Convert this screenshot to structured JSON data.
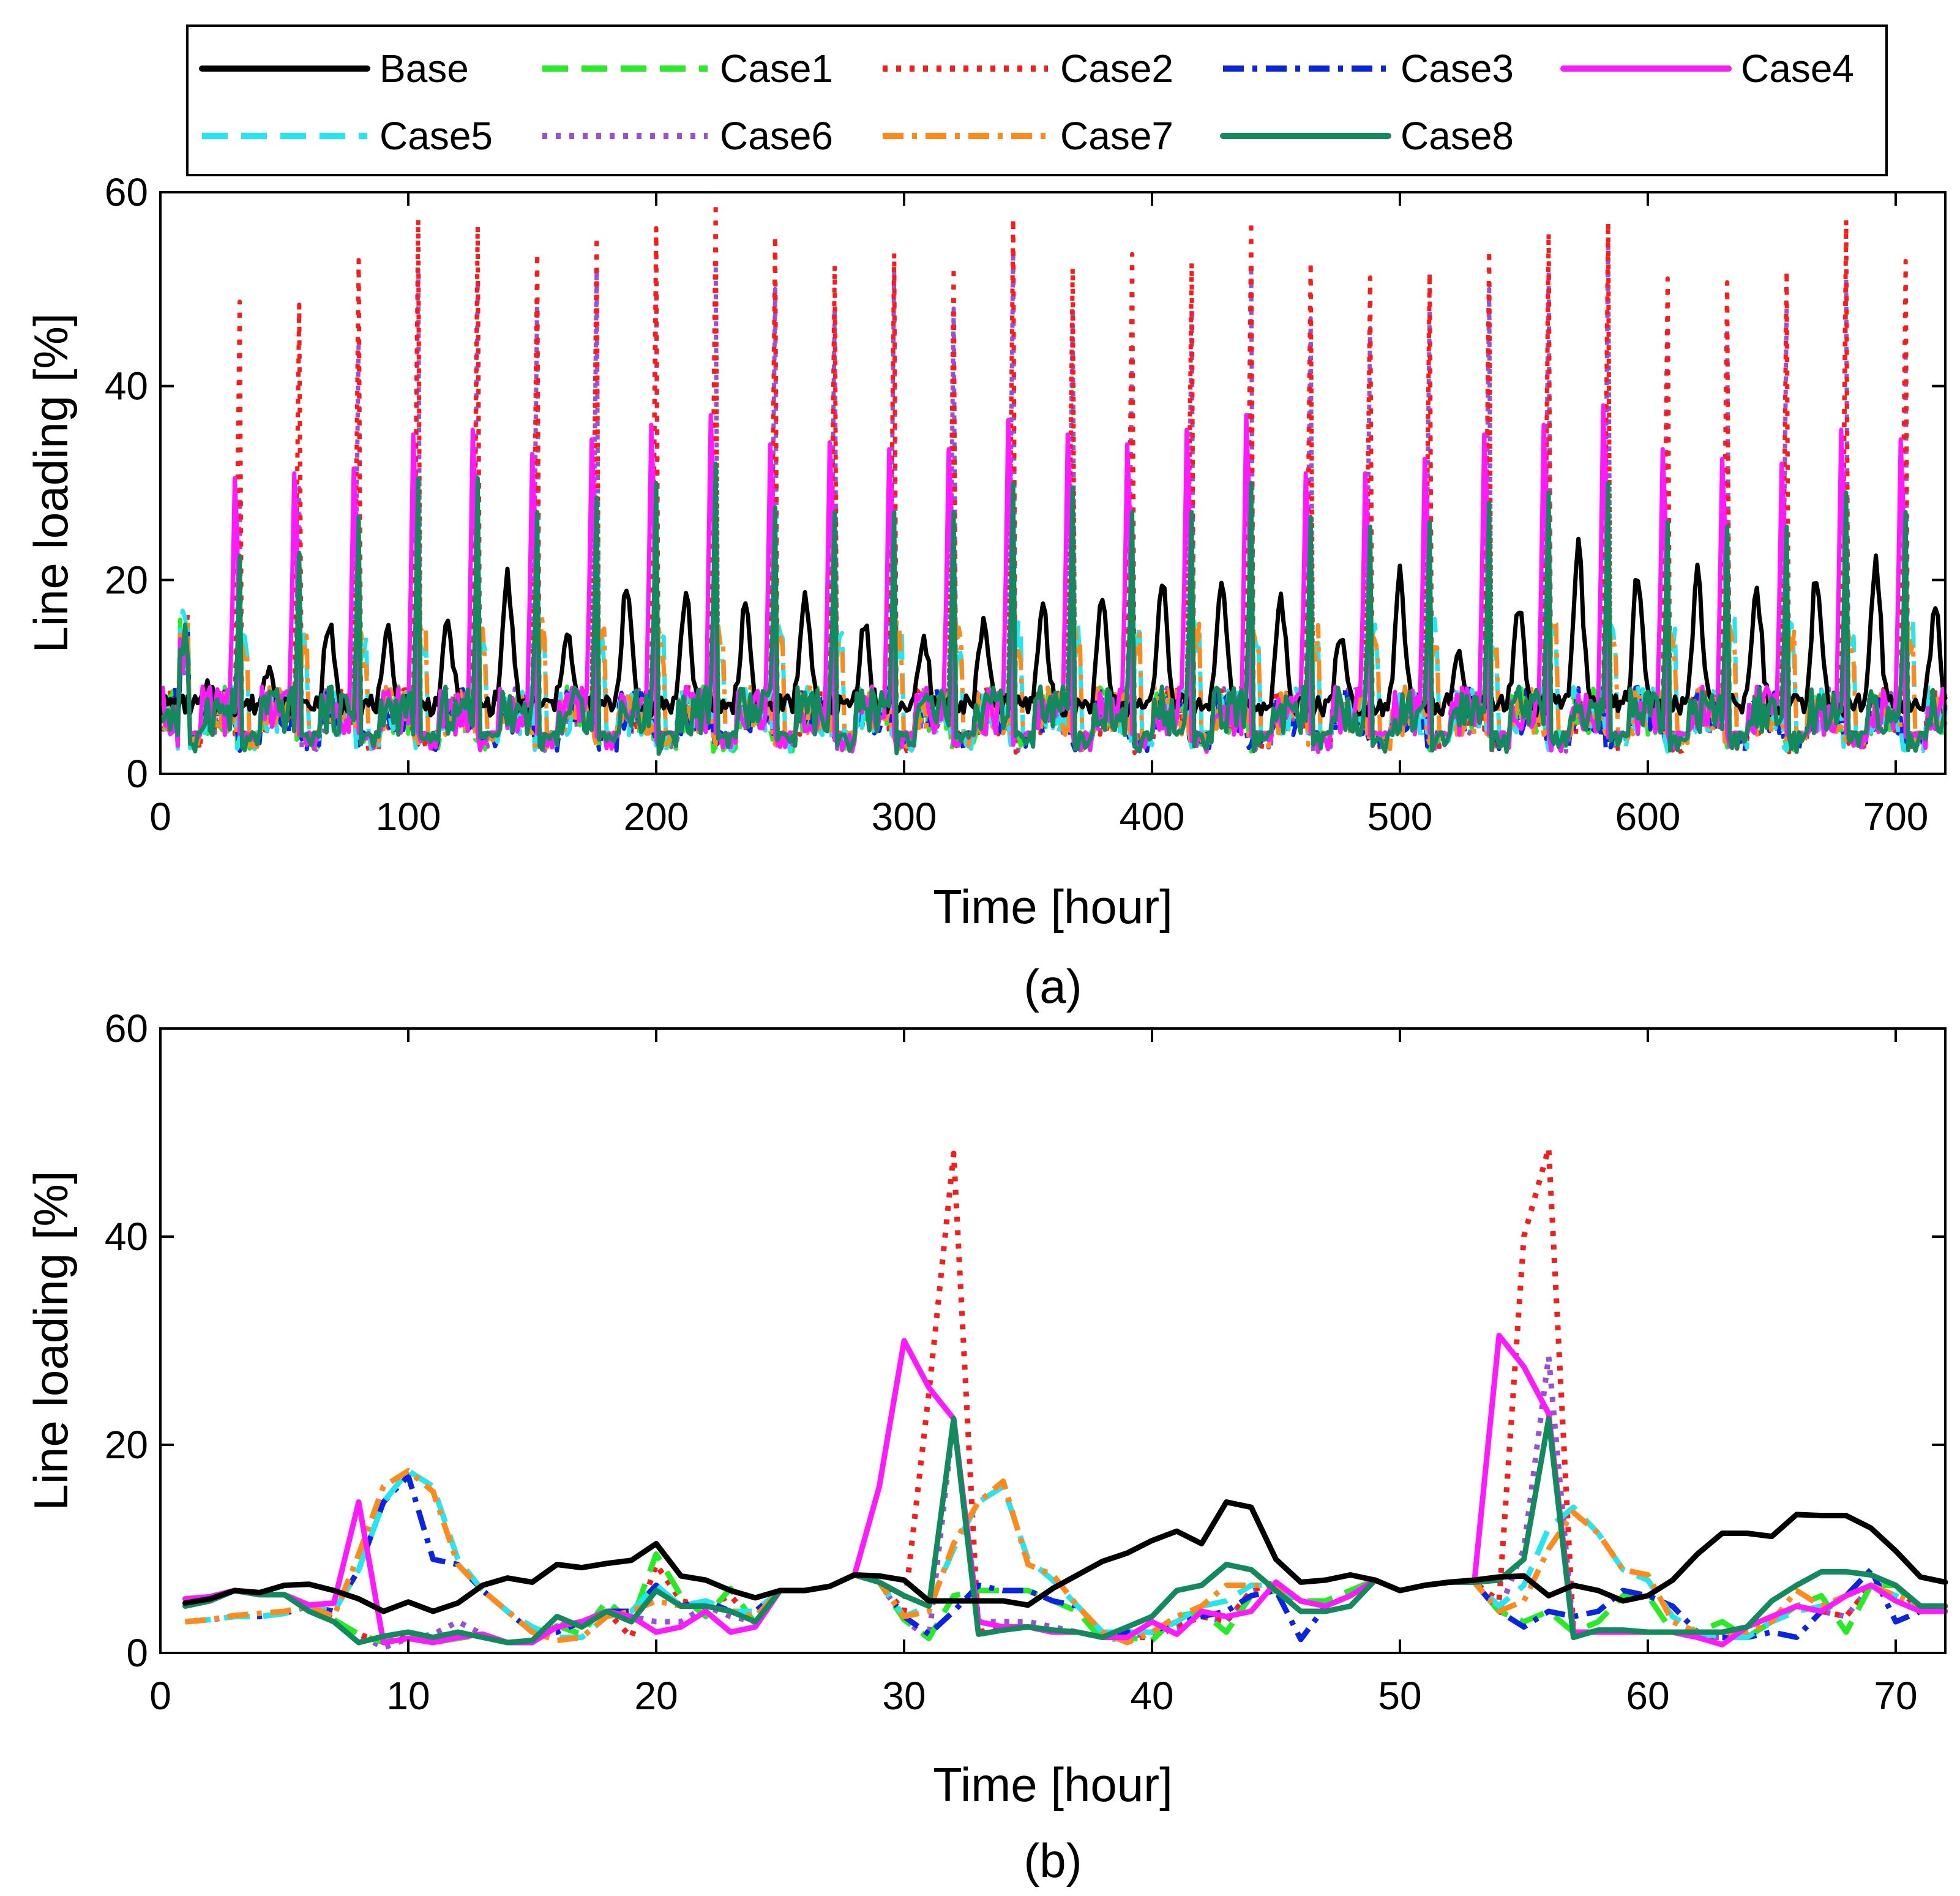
{
  "legend": {
    "entries": [
      {
        "name": "Base",
        "color": "#000000",
        "dash": "solid"
      },
      {
        "name": "Case1",
        "color": "#22ee22",
        "dash": "dashed"
      },
      {
        "name": "Case2",
        "color": "#ff1a1a",
        "dash": "dotted"
      },
      {
        "name": "Case3",
        "color": "#0a24e6",
        "dash": "dashdot"
      },
      {
        "name": "Case4",
        "color": "#ff19ff",
        "dash": "solid"
      },
      {
        "name": "Case5",
        "color": "#22e6f0",
        "dash": "dashed"
      },
      {
        "name": "Case6",
        "color": "#9a4fd6",
        "dash": "dotted"
      },
      {
        "name": "Case7",
        "color": "#ff8a1a",
        "dash": "dashdot"
      },
      {
        "name": "Case8",
        "color": "#138a5e",
        "dash": "solid"
      }
    ]
  },
  "chart_data": [
    {
      "type": "line",
      "panel_label": "(a)",
      "title": "",
      "xlabel": "Time [hour]",
      "ylabel": "Line loading [%]",
      "xlim": [
        0,
        720
      ],
      "ylim": [
        0,
        60
      ],
      "xticks": [
        0,
        100,
        200,
        300,
        400,
        500,
        600,
        700
      ],
      "yticks": [
        0,
        20,
        40,
        60
      ],
      "generated": {
        "hours": 720,
        "day_peaks": {
          "Base": [
            7.7,
            10.4,
            14.4,
            13.3,
            14.4,
            19.3,
            13.9,
            18.7,
            17.6,
            16.6,
            17.8,
            14.8,
            12.5,
            14.5,
            16.6,
            16.7,
            19.4,
            19.4,
            16.8,
            13.5,
            19.7,
            10.8,
            15.8,
            22.4,
            19.8,
            19.4,
            17.5,
            19.5,
            21.0,
            16.5
          ],
          "Case2": [
            18.0,
            48.7,
            48.4,
            53.0,
            57.2,
            56.5,
            53.7,
            55.4,
            56.3,
            58.9,
            55.5,
            52.4,
            53.7,
            52.3,
            57.3,
            52.2,
            53.6,
            52.7,
            57.0,
            52.8,
            51.2,
            51.7,
            54.0,
            55.8,
            56.9,
            51.1,
            50.7,
            51.9,
            57.1,
            52.9
          ],
          "Case4": [
            14.5,
            30.5,
            31.0,
            31.5,
            35.0,
            35.5,
            33.0,
            34.5,
            36.0,
            37.0,
            34.0,
            34.2,
            33.5,
            33.5,
            36.5,
            35.0,
            34.0,
            35.5,
            37.0,
            31.0,
            31.0,
            32.5,
            35.0,
            36.0,
            38.0,
            33.5,
            32.5,
            32.0,
            35.5,
            34.5
          ],
          "Case6": [
            17.5,
            28.5,
            29.5,
            45.0,
            52.0,
            51.0,
            49.0,
            52.0,
            50.0,
            53.0,
            50.0,
            48.0,
            52.0,
            48.0,
            54.0,
            48.0,
            44.0,
            48.0,
            52.0,
            47.0,
            46.0,
            48.0,
            50.0,
            52.0,
            55.0,
            47.0,
            46.0,
            48.0,
            51.0,
            43.0
          ],
          "Case8": [
            17.0,
            22.5,
            22.8,
            26.5,
            30.5,
            30.5,
            27.0,
            28.5,
            30.0,
            32.0,
            27.5,
            27.0,
            27.0,
            27.0,
            30.0,
            29.5,
            27.0,
            27.0,
            30.0,
            26.5,
            25.5,
            26.0,
            28.0,
            29.0,
            30.0,
            26.0,
            25.5,
            25.5,
            29.0,
            27.0
          ]
        }
      }
    },
    {
      "type": "line",
      "panel_label": "(b)",
      "title": "",
      "xlabel": "Time [hour]",
      "ylabel": "Line loading [%]",
      "xlim": [
        0,
        72
      ],
      "ylim": [
        0,
        60
      ],
      "xticks": [
        0,
        10,
        20,
        30,
        40,
        50,
        60,
        70
      ],
      "yticks": [
        0,
        20,
        40,
        60
      ],
      "x": [
        1,
        2,
        3,
        4,
        5,
        6,
        7,
        8,
        9,
        10,
        11,
        12,
        13,
        14,
        15,
        16,
        17,
        18,
        19,
        20,
        21,
        22,
        23,
        24,
        25,
        26,
        27,
        28,
        29,
        30,
        31,
        32,
        33,
        34,
        35,
        36,
        37,
        38,
        39,
        40,
        41,
        42,
        43,
        44,
        45,
        46,
        47,
        48,
        49,
        50,
        51,
        52,
        53,
        54,
        55,
        56,
        57,
        58,
        59,
        60,
        61,
        62,
        63,
        64,
        65,
        66,
        67,
        68,
        69,
        70,
        71,
        72
      ],
      "series": [
        {
          "name": "Base",
          "values": [
            4.8,
            5.2,
            6.0,
            5.8,
            6.5,
            6.6,
            6.0,
            5.2,
            4.0,
            4.9,
            4.0,
            4.8,
            6.5,
            7.2,
            6.8,
            8.5,
            8.2,
            8.6,
            8.9,
            10.5,
            7.4,
            7.0,
            6.0,
            5.3,
            6.0,
            6.0,
            6.4,
            7.5,
            7.4,
            7.0,
            5.0,
            5.0,
            5.0,
            5.0,
            4.6,
            6.2,
            7.5,
            8.8,
            9.6,
            10.8,
            11.7,
            10.5,
            14.5,
            14.0,
            9.0,
            6.8,
            7.0,
            7.5,
            7.0,
            6.0,
            6.5,
            6.8,
            7.0,
            7.3,
            7.4,
            5.5,
            6.5,
            6.0,
            5.0,
            5.5,
            7.0,
            9.5,
            11.5,
            11.5,
            11.2,
            13.3,
            13.2,
            13.2,
            12.0,
            9.8,
            7.3,
            6.8
          ]
        },
        {
          "name": "Case1",
          "values": [
            5.0,
            5.4,
            6.0,
            5.6,
            5.6,
            4.6,
            3.2,
            1.8,
            1.0,
            2.0,
            1.0,
            1.4,
            1.8,
            1.0,
            1.2,
            2.6,
            1.8,
            5.0,
            3.0,
            9.5,
            5.5,
            3.5,
            6.2,
            2.8,
            6.0,
            6.0,
            6.4,
            7.5,
            6.8,
            3.2,
            1.4,
            5.5,
            6.0,
            6.0,
            6.0,
            5.0,
            4.0,
            1.2,
            1.5,
            1.2,
            3.5,
            4.0,
            2.0,
            5.5,
            6.0,
            5.0,
            5.0,
            6.0,
            7.0,
            6.0,
            6.5,
            6.8,
            6.8,
            4.0,
            3.0,
            4.0,
            2.0,
            3.0,
            5.5,
            5.5,
            2.0,
            2.0,
            3.0,
            1.5,
            3.0,
            4.5,
            5.5,
            2.0,
            6.5,
            6.5,
            4.0,
            4.0
          ]
        },
        {
          "name": "Case2",
          "values": [
            5.0,
            5.4,
            6.0,
            5.6,
            5.6,
            4.6,
            3.2,
            1.8,
            1.0,
            2.0,
            1.0,
            1.4,
            1.8,
            1.0,
            1.2,
            2.6,
            3.0,
            4.0,
            1.5,
            8.5,
            5.0,
            4.5,
            5.5,
            2.8,
            6.0,
            6.0,
            6.4,
            7.5,
            6.8,
            4.0,
            25.0,
            48.0,
            2.0,
            2.5,
            2.5,
            2.0,
            2.0,
            1.5,
            1.5,
            1.5,
            2.5,
            3.5,
            3.0,
            6.0,
            6.8,
            5.0,
            4.5,
            5.5,
            7.0,
            6.0,
            6.5,
            6.8,
            6.8,
            5.0,
            40.0,
            48.5,
            2.0,
            2.0,
            2.0,
            2.0,
            2.0,
            1.5,
            1.5,
            1.5,
            3.0,
            4.5,
            4.0,
            3.5,
            6.5,
            6.5,
            4.0,
            4.0
          ]
        },
        {
          "name": "Case3",
          "values": [
            3.0,
            3.2,
            3.5,
            3.5,
            3.8,
            4.5,
            4.0,
            8.0,
            14.5,
            17.0,
            9.0,
            8.5,
            6.0,
            4.0,
            2.0,
            2.0,
            3.0,
            4.0,
            4.0,
            6.5,
            4.5,
            5.0,
            4.0,
            4.0,
            6.0,
            6.0,
            6.4,
            7.5,
            6.8,
            3.5,
            1.8,
            4.0,
            6.5,
            6.0,
            6.0,
            5.0,
            4.5,
            2.0,
            2.0,
            2.0,
            3.0,
            3.5,
            4.0,
            5.5,
            6.0,
            1.3,
            4.5,
            5.5,
            7.0,
            6.0,
            6.5,
            6.8,
            6.8,
            4.0,
            2.5,
            4.0,
            3.5,
            4.0,
            6.0,
            5.5,
            4.5,
            2.0,
            1.5,
            1.5,
            2.0,
            1.5,
            4.0,
            5.5,
            8.0,
            3.0,
            4.0,
            4.0
          ]
        },
        {
          "name": "Case4",
          "values": [
            5.2,
            5.4,
            6.0,
            5.6,
            5.6,
            4.6,
            4.8,
            14.5,
            1.0,
            1.4,
            1.0,
            1.5,
            1.8,
            1.0,
            1.0,
            2.5,
            3.0,
            4.0,
            3.5,
            2.0,
            2.5,
            4.0,
            2.0,
            2.5,
            6.0,
            6.0,
            6.4,
            7.5,
            16.0,
            30.0,
            25.5,
            22.5,
            3.0,
            2.5,
            2.5,
            2.0,
            2.0,
            1.5,
            1.5,
            3.0,
            1.8,
            4.0,
            3.5,
            4.0,
            6.8,
            5.0,
            4.5,
            5.5,
            7.0,
            6.0,
            6.5,
            6.8,
            6.8,
            30.5,
            27.5,
            23.0,
            2.0,
            2.0,
            2.0,
            2.0,
            2.0,
            1.5,
            0.8,
            2.5,
            3.5,
            4.5,
            4.0,
            5.5,
            6.5,
            5.0,
            4.0,
            4.0
          ]
        },
        {
          "name": "Case5",
          "values": [
            3.0,
            3.2,
            3.5,
            3.5,
            3.8,
            4.5,
            4.0,
            8.0,
            14.5,
            17.5,
            16.0,
            9.0,
            6.0,
            4.0,
            2.5,
            1.5,
            1.5,
            3.5,
            4.0,
            6.5,
            4.5,
            5.0,
            4.0,
            4.0,
            6.0,
            6.0,
            6.4,
            7.5,
            6.8,
            3.5,
            4.5,
            10.0,
            14.5,
            16.0,
            9.0,
            7.0,
            4.5,
            2.0,
            2.0,
            2.0,
            3.0,
            4.5,
            5.0,
            6.5,
            6.5,
            5.0,
            4.5,
            5.5,
            7.0,
            6.0,
            6.5,
            6.8,
            6.8,
            4.5,
            6.5,
            12.0,
            14.0,
            11.5,
            8.0,
            7.0,
            3.5,
            2.0,
            1.5,
            1.5,
            3.0,
            4.0,
            4.5,
            5.5,
            6.5,
            5.5,
            4.0,
            4.0
          ]
        },
        {
          "name": "Case6",
          "values": [
            5.0,
            5.4,
            6.0,
            5.6,
            5.6,
            4.6,
            3.2,
            1.8,
            0.5,
            1.4,
            1.8,
            3.0,
            1.8,
            1.0,
            1.2,
            2.6,
            3.0,
            4.0,
            3.5,
            3.0,
            3.0,
            4.5,
            3.5,
            3.0,
            6.0,
            6.0,
            6.4,
            7.5,
            6.8,
            3.2,
            1.4,
            22.5,
            3.0,
            3.0,
            3.0,
            2.5,
            2.0,
            1.5,
            1.5,
            2.0,
            2.5,
            3.5,
            3.0,
            6.0,
            6.8,
            5.0,
            4.5,
            5.5,
            7.0,
            6.0,
            6.5,
            6.8,
            6.8,
            4.0,
            10.0,
            28.5,
            2.0,
            2.0,
            2.0,
            2.0,
            2.0,
            1.5,
            1.5,
            1.5,
            3.0,
            4.5,
            4.0,
            3.5,
            6.5,
            6.5,
            4.0,
            4.0
          ]
        },
        {
          "name": "Case7",
          "values": [
            3.0,
            3.2,
            3.6,
            3.8,
            4.0,
            4.5,
            3.5,
            9.5,
            16.0,
            17.5,
            15.5,
            8.5,
            6.0,
            4.0,
            2.0,
            1.2,
            1.5,
            3.5,
            4.0,
            5.0,
            4.5,
            4.5,
            4.0,
            3.5,
            6.0,
            6.0,
            6.4,
            7.5,
            6.8,
            3.5,
            4.0,
            10.5,
            14.5,
            16.5,
            8.5,
            7.5,
            4.5,
            2.0,
            1.0,
            2.0,
            3.5,
            4.5,
            6.5,
            6.5,
            6.5,
            5.0,
            4.5,
            5.5,
            7.0,
            6.0,
            6.5,
            6.8,
            6.8,
            4.0,
            5.0,
            10.0,
            13.5,
            11.5,
            8.0,
            7.5,
            3.0,
            2.0,
            2.0,
            2.0,
            3.0,
            6.0,
            4.5,
            5.5,
            6.5,
            5.5,
            4.5,
            4.5
          ]
        },
        {
          "name": "Case8",
          "values": [
            4.5,
            5.0,
            6.0,
            5.6,
            5.6,
            4.0,
            3.0,
            1.0,
            1.6,
            2.0,
            1.5,
            2.0,
            1.5,
            1.0,
            1.2,
            3.5,
            2.5,
            4.0,
            3.0,
            6.0,
            4.5,
            4.5,
            4.0,
            3.0,
            6.0,
            6.0,
            6.4,
            7.5,
            6.8,
            5.5,
            4.5,
            22.5,
            1.8,
            2.2,
            2.5,
            2.2,
            2.0,
            1.5,
            2.5,
            3.5,
            6.0,
            6.5,
            8.5,
            8.0,
            6.0,
            4.0,
            4.0,
            4.5,
            7.0,
            6.0,
            6.5,
            6.8,
            6.8,
            7.0,
            9.0,
            22.5,
            1.5,
            2.2,
            2.2,
            2.0,
            2.0,
            2.0,
            2.0,
            2.5,
            5.0,
            6.5,
            7.8,
            7.8,
            7.5,
            6.5,
            4.5,
            4.5
          ]
        }
      ]
    }
  ]
}
